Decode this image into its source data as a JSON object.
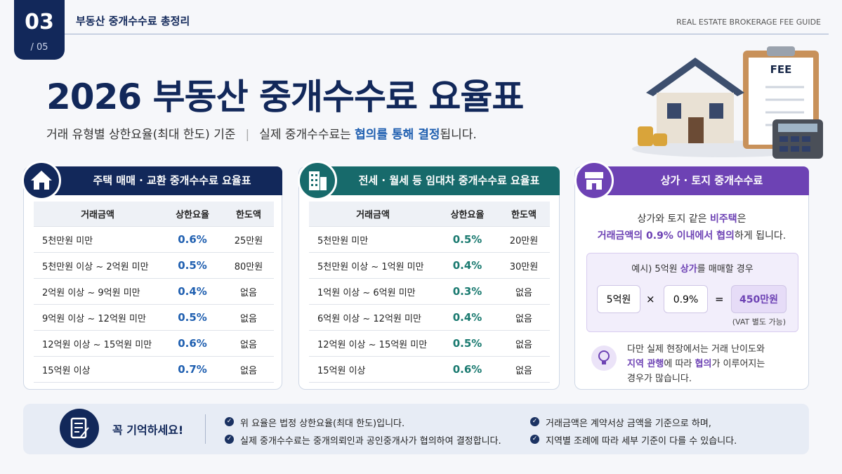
{
  "header": {
    "page_number": "03",
    "page_total": "/ 05",
    "section": "부동산 중개수수료 총정리",
    "guide": "REAL ESTATE BROKERAGE FEE GUIDE"
  },
  "title": "2026 부동산 중개수수료 요율표",
  "subtitle": {
    "basis": "거래 유형별 상한요율(최대 한도) 기준",
    "note": [
      "실제 중개수수료는 ",
      "협의를 통해 결정",
      "됩니다."
    ]
  },
  "illustration_label": "FEE",
  "tables": [
    {
      "title": "주택 매매 · 교환 중개수수료 요율표",
      "columns": [
        "거래금액",
        "상한요율",
        "한도액"
      ],
      "rows": [
        [
          "5천만원 미만",
          "0.6%",
          "25만원"
        ],
        [
          "5천만원 이상 ~ 2억원 미만",
          "0.5%",
          "80만원"
        ],
        [
          "2억원 이상 ~ 9억원 미만",
          "0.4%",
          "없음"
        ],
        [
          "9억원 이상 ~ 12억원 미만",
          "0.5%",
          "없음"
        ],
        [
          "12억원 이상 ~ 15억원 미만",
          "0.6%",
          "없음"
        ],
        [
          "15억원 이상",
          "0.7%",
          "없음"
        ]
      ]
    },
    {
      "title": "전세 · 월세 등 임대차 중개수수료 요율표",
      "columns": [
        "거래금액",
        "상한요율",
        "한도액"
      ],
      "rows": [
        [
          "5천만원 미만",
          "0.5%",
          "20만원"
        ],
        [
          "5천만원 이상 ~ 1억원 미만",
          "0.4%",
          "30만원"
        ],
        [
          "1억원 이상 ~ 6억원 미만",
          "0.3%",
          "없음"
        ],
        [
          "6억원 이상 ~ 12억원 미만",
          "0.4%",
          "없음"
        ],
        [
          "12억원 이상 ~ 15억원 미만",
          "0.5%",
          "없음"
        ],
        [
          "15억원 이상",
          "0.6%",
          "없음"
        ]
      ]
    }
  ],
  "commercial": {
    "title": "상가 · 토지 중개수수료",
    "lines": [
      [
        "상가와 토지 같은 ",
        "비주택",
        "은"
      ],
      [
        "거래금액의 0.9% 이내에서 협의",
        "하게 됩니다."
      ]
    ],
    "example": {
      "title": [
        "예시) 5억원 ",
        "상가",
        "를 매매할 경우"
      ],
      "amount": "5억원",
      "times": "×",
      "rate": "0.9%",
      "equals": "=",
      "result": "450만원",
      "note": "(VAT 별도 가능)"
    },
    "tip": [
      [
        "다만 실제 현장에서는 거래 난이도와"
      ],
      [
        "지역 관행",
        "에 따라 ",
        "협의",
        "가 이루어지는"
      ],
      [
        "경우가 많습니다."
      ]
    ]
  },
  "reminder": {
    "title": "꼭 기억하세요!",
    "items": [
      "위 요율은 법정 상한요율(최대 한도)입니다.",
      "실제 중개수수료는 중개의뢰인과 공인중개사가 협의하여 결정합니다.",
      "거래금액은 계약서상 금액을 기준으로 하며,",
      "지역별 조례에 따라 세부 기준이 다를 수 있습니다."
    ]
  }
}
